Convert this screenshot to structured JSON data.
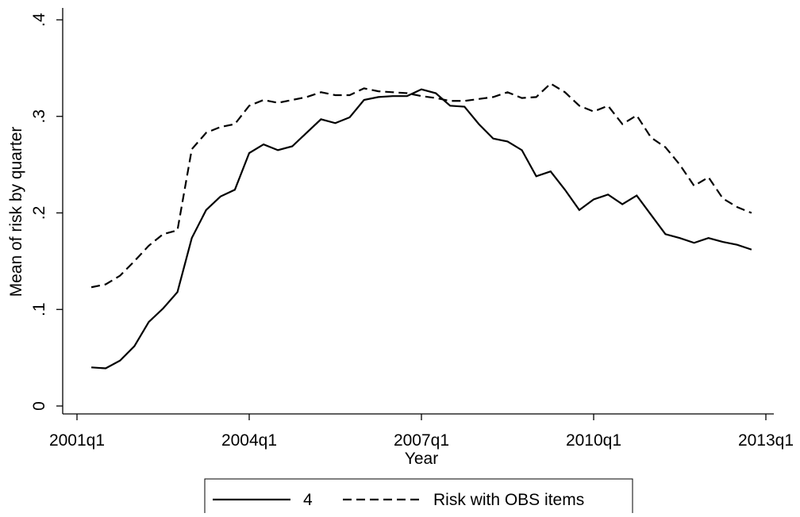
{
  "chart_data": {
    "type": "line",
    "x_label": "Year",
    "y_label": "Mean of risk by quarter",
    "x": [
      "2001q2",
      "2001q3",
      "2001q4",
      "2002q1",
      "2002q2",
      "2002q3",
      "2002q4",
      "2003q1",
      "2003q2",
      "2003q3",
      "2003q4",
      "2004q1",
      "2004q2",
      "2004q3",
      "2004q4",
      "2005q1",
      "2005q2",
      "2005q3",
      "2005q4",
      "2006q1",
      "2006q2",
      "2006q3",
      "2006q4",
      "2007q1",
      "2007q2",
      "2007q3",
      "2007q4",
      "2008q1",
      "2008q2",
      "2008q3",
      "2008q4",
      "2009q1",
      "2009q2",
      "2009q3",
      "2009q4",
      "2010q1",
      "2010q2",
      "2010q3",
      "2010q4",
      "2011q1",
      "2011q2",
      "2011q3",
      "2011q4",
      "2012q1",
      "2012q2",
      "2012q3",
      "2012q4"
    ],
    "series": [
      {
        "name": "4",
        "color": "#000000",
        "dash": "solid",
        "values": [
          0.04,
          0.039,
          0.047,
          0.062,
          0.087,
          0.101,
          0.118,
          0.174,
          0.203,
          0.217,
          0.224,
          0.262,
          0.271,
          0.265,
          0.269,
          0.283,
          0.297,
          0.293,
          0.299,
          0.317,
          0.32,
          0.321,
          0.321,
          0.328,
          0.324,
          0.311,
          0.31,
          0.292,
          0.277,
          0.274,
          0.265,
          0.238,
          0.243,
          0.224,
          0.203,
          0.214,
          0.219,
          0.209,
          0.218,
          0.198,
          0.178,
          0.174,
          0.169,
          0.174,
          0.17,
          0.167,
          0.162
        ]
      },
      {
        "name": "Risk with OBS items",
        "color": "#000000",
        "dash": "dashed",
        "values": [
          0.123,
          0.126,
          0.135,
          0.15,
          0.166,
          0.178,
          0.182,
          0.266,
          0.283,
          0.289,
          0.292,
          0.311,
          0.317,
          0.314,
          0.317,
          0.32,
          0.325,
          0.322,
          0.322,
          0.329,
          0.326,
          0.325,
          0.324,
          0.321,
          0.319,
          0.316,
          0.316,
          0.318,
          0.32,
          0.325,
          0.319,
          0.32,
          0.334,
          0.325,
          0.311,
          0.305,
          0.311,
          0.292,
          0.301,
          0.278,
          0.268,
          0.25,
          0.228,
          0.237,
          0.215,
          0.206,
          0.2
        ]
      }
    ],
    "xlim": [
      "2001q1",
      "2013q1"
    ],
    "xticks": [
      "2001q1",
      "2004q1",
      "2007q1",
      "2010q1",
      "2013q1"
    ],
    "ylim": [
      0,
      0.4
    ],
    "yticks": [
      0,
      {
        "value": 0.1,
        "label": ".1"
      },
      {
        "value": 0.2,
        "label": ".2"
      },
      {
        "value": 0.3,
        "label": ".3"
      },
      {
        "value": 0.4,
        "label": ".4"
      }
    ],
    "grid": false,
    "legend": "bottom"
  }
}
